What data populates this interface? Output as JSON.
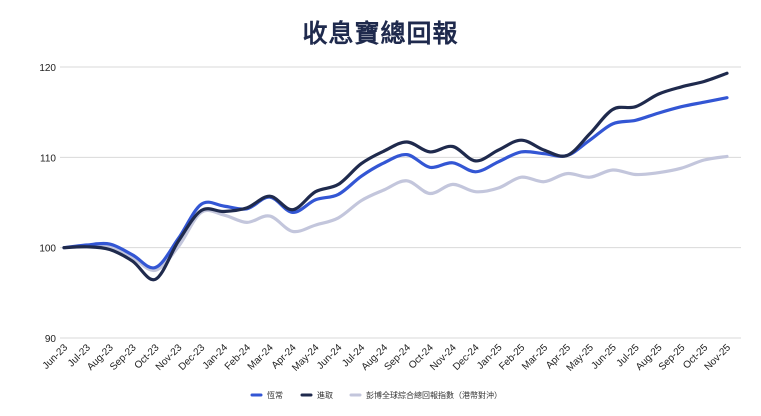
{
  "chart_data": {
    "type": "line",
    "title": "收息寶總回報",
    "xlabel": "",
    "ylabel": "",
    "ylim": [
      90,
      120
    ],
    "yticks": [
      90,
      100,
      110,
      120
    ],
    "grid": true,
    "legend_position": "bottom",
    "categories": [
      "Jun-23",
      "Jul-23",
      "Aug-23",
      "Sep-23",
      "Oct-23",
      "Nov-23",
      "Dec-23",
      "Jan-24",
      "Feb-24",
      "Mar-24",
      "Apr-24",
      "May-24",
      "Jun-24",
      "Jul-24",
      "Aug-24",
      "Sep-24",
      "Oct-24",
      "Nov-24",
      "Dec-24",
      "Jan-25",
      "Feb-25",
      "Mar-25",
      "Apr-25",
      "May-25",
      "Jun-25",
      "Jul-25",
      "Aug-25",
      "Sep-25",
      "Oct-25",
      "Nov-25"
    ],
    "series": [
      {
        "name": "恆常",
        "color": "#3356d4",
        "values": [
          100.0,
          100.3,
          100.4,
          99.2,
          97.8,
          101.0,
          104.8,
          104.6,
          104.3,
          105.6,
          103.9,
          105.3,
          105.9,
          107.9,
          109.4,
          110.3,
          108.9,
          109.4,
          108.4,
          109.5,
          110.6,
          110.4,
          110.2,
          111.9,
          113.7,
          114.1,
          114.9,
          115.6,
          116.1,
          116.6
        ]
      },
      {
        "name": "進取",
        "color": "#1f2a4d",
        "values": [
          100.0,
          100.1,
          99.8,
          98.5,
          96.5,
          100.7,
          104.1,
          104.0,
          104.4,
          105.7,
          104.2,
          106.2,
          107.0,
          109.3,
          110.7,
          111.7,
          110.6,
          111.2,
          109.6,
          110.8,
          111.9,
          110.8,
          110.2,
          112.6,
          115.3,
          115.6,
          117.0,
          117.8,
          118.4,
          119.3
        ]
      },
      {
        "name": "彭博全球綜合總回報指數（港幣對沖）",
        "color": "#c3c6dc",
        "values": [
          100.0,
          100.1,
          100.1,
          98.9,
          97.5,
          100.1,
          103.9,
          103.6,
          102.8,
          103.5,
          101.8,
          102.5,
          103.3,
          105.2,
          106.4,
          107.4,
          106.0,
          107.0,
          106.2,
          106.6,
          107.8,
          107.3,
          108.2,
          107.8,
          108.6,
          108.1,
          108.3,
          108.8,
          109.7,
          110.1
        ]
      }
    ]
  }
}
